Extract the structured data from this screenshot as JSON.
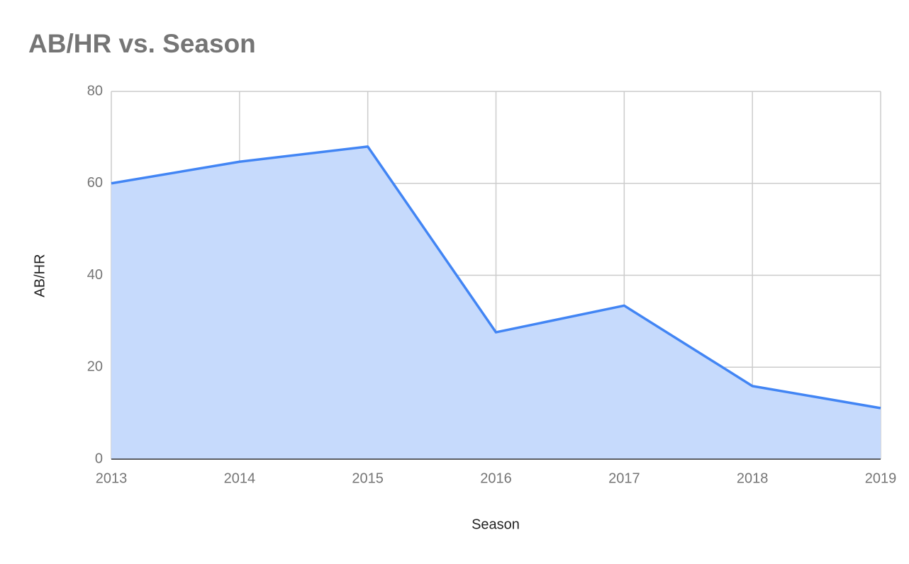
{
  "chart_data": {
    "type": "area",
    "title": "AB/HR vs. Season",
    "x_label": "Season",
    "y_label": "AB/HR",
    "x": [
      2013,
      2014,
      2015,
      2016,
      2017,
      2018,
      2019
    ],
    "series": [
      {
        "name": "AB/HR",
        "color": "#4285f4",
        "fill_color": "#c6dafc",
        "values": [
          60,
          64.7,
          68,
          27.6,
          33.4,
          15.9,
          11.1
        ]
      }
    ],
    "xlim": [
      2013,
      2019
    ],
    "xticks": [
      2013,
      2014,
      2015,
      2016,
      2017,
      2018,
      2019
    ],
    "ylim": [
      0,
      80
    ],
    "yticks": [
      0,
      20,
      40,
      60,
      80
    ],
    "grid": true
  }
}
